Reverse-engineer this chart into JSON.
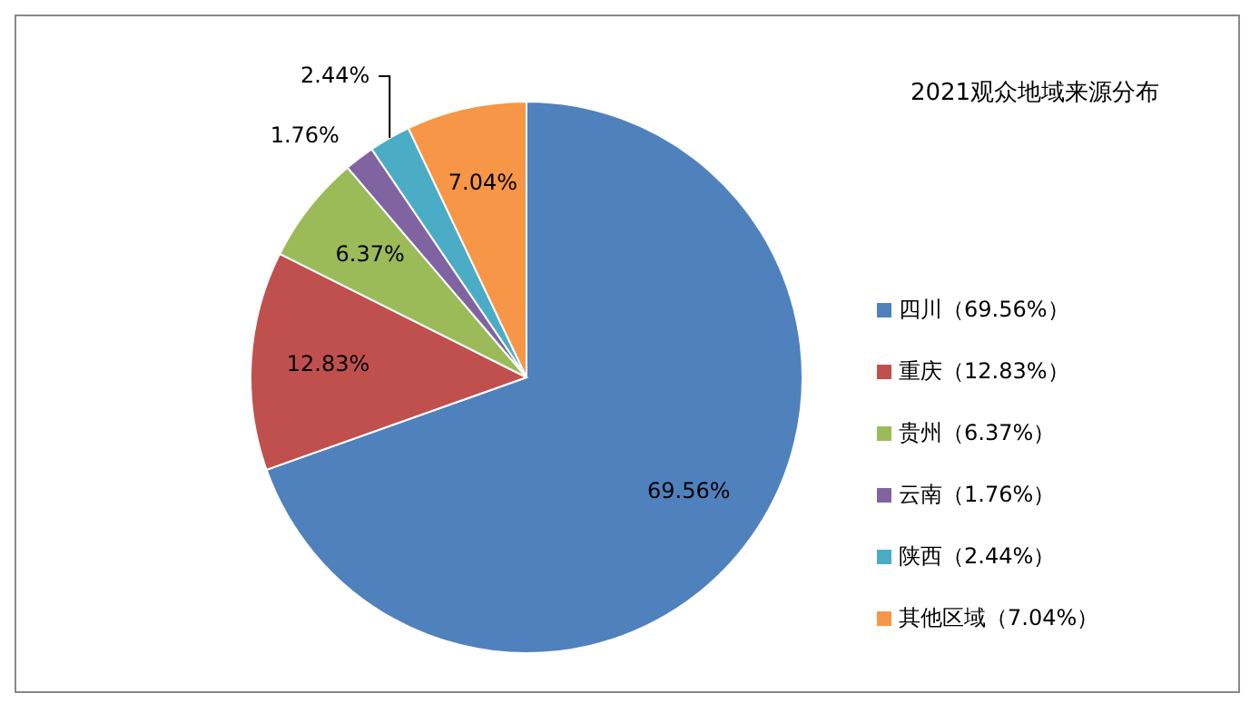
{
  "chart_data": {
    "type": "pie",
    "title": "2021观众地域来源分布",
    "categories": [
      "四川（69.56%）",
      "重庆（12.83%）",
      "贵州（6.37%）",
      "云南（1.76%）",
      "陕西（2.44%）",
      "其他区域（7.04%）"
    ],
    "values": [
      69.56,
      12.83,
      6.37,
      1.76,
      2.44,
      7.04
    ],
    "colors": [
      "#4f81bd",
      "#c0504d",
      "#9bbb59",
      "#8064a2",
      "#4bacc6",
      "#f79646"
    ],
    "value_labels": [
      "69.56%",
      "12.83%",
      "6.37%",
      "1.76%",
      "2.44%",
      "7.04%"
    ],
    "legend": "right"
  }
}
